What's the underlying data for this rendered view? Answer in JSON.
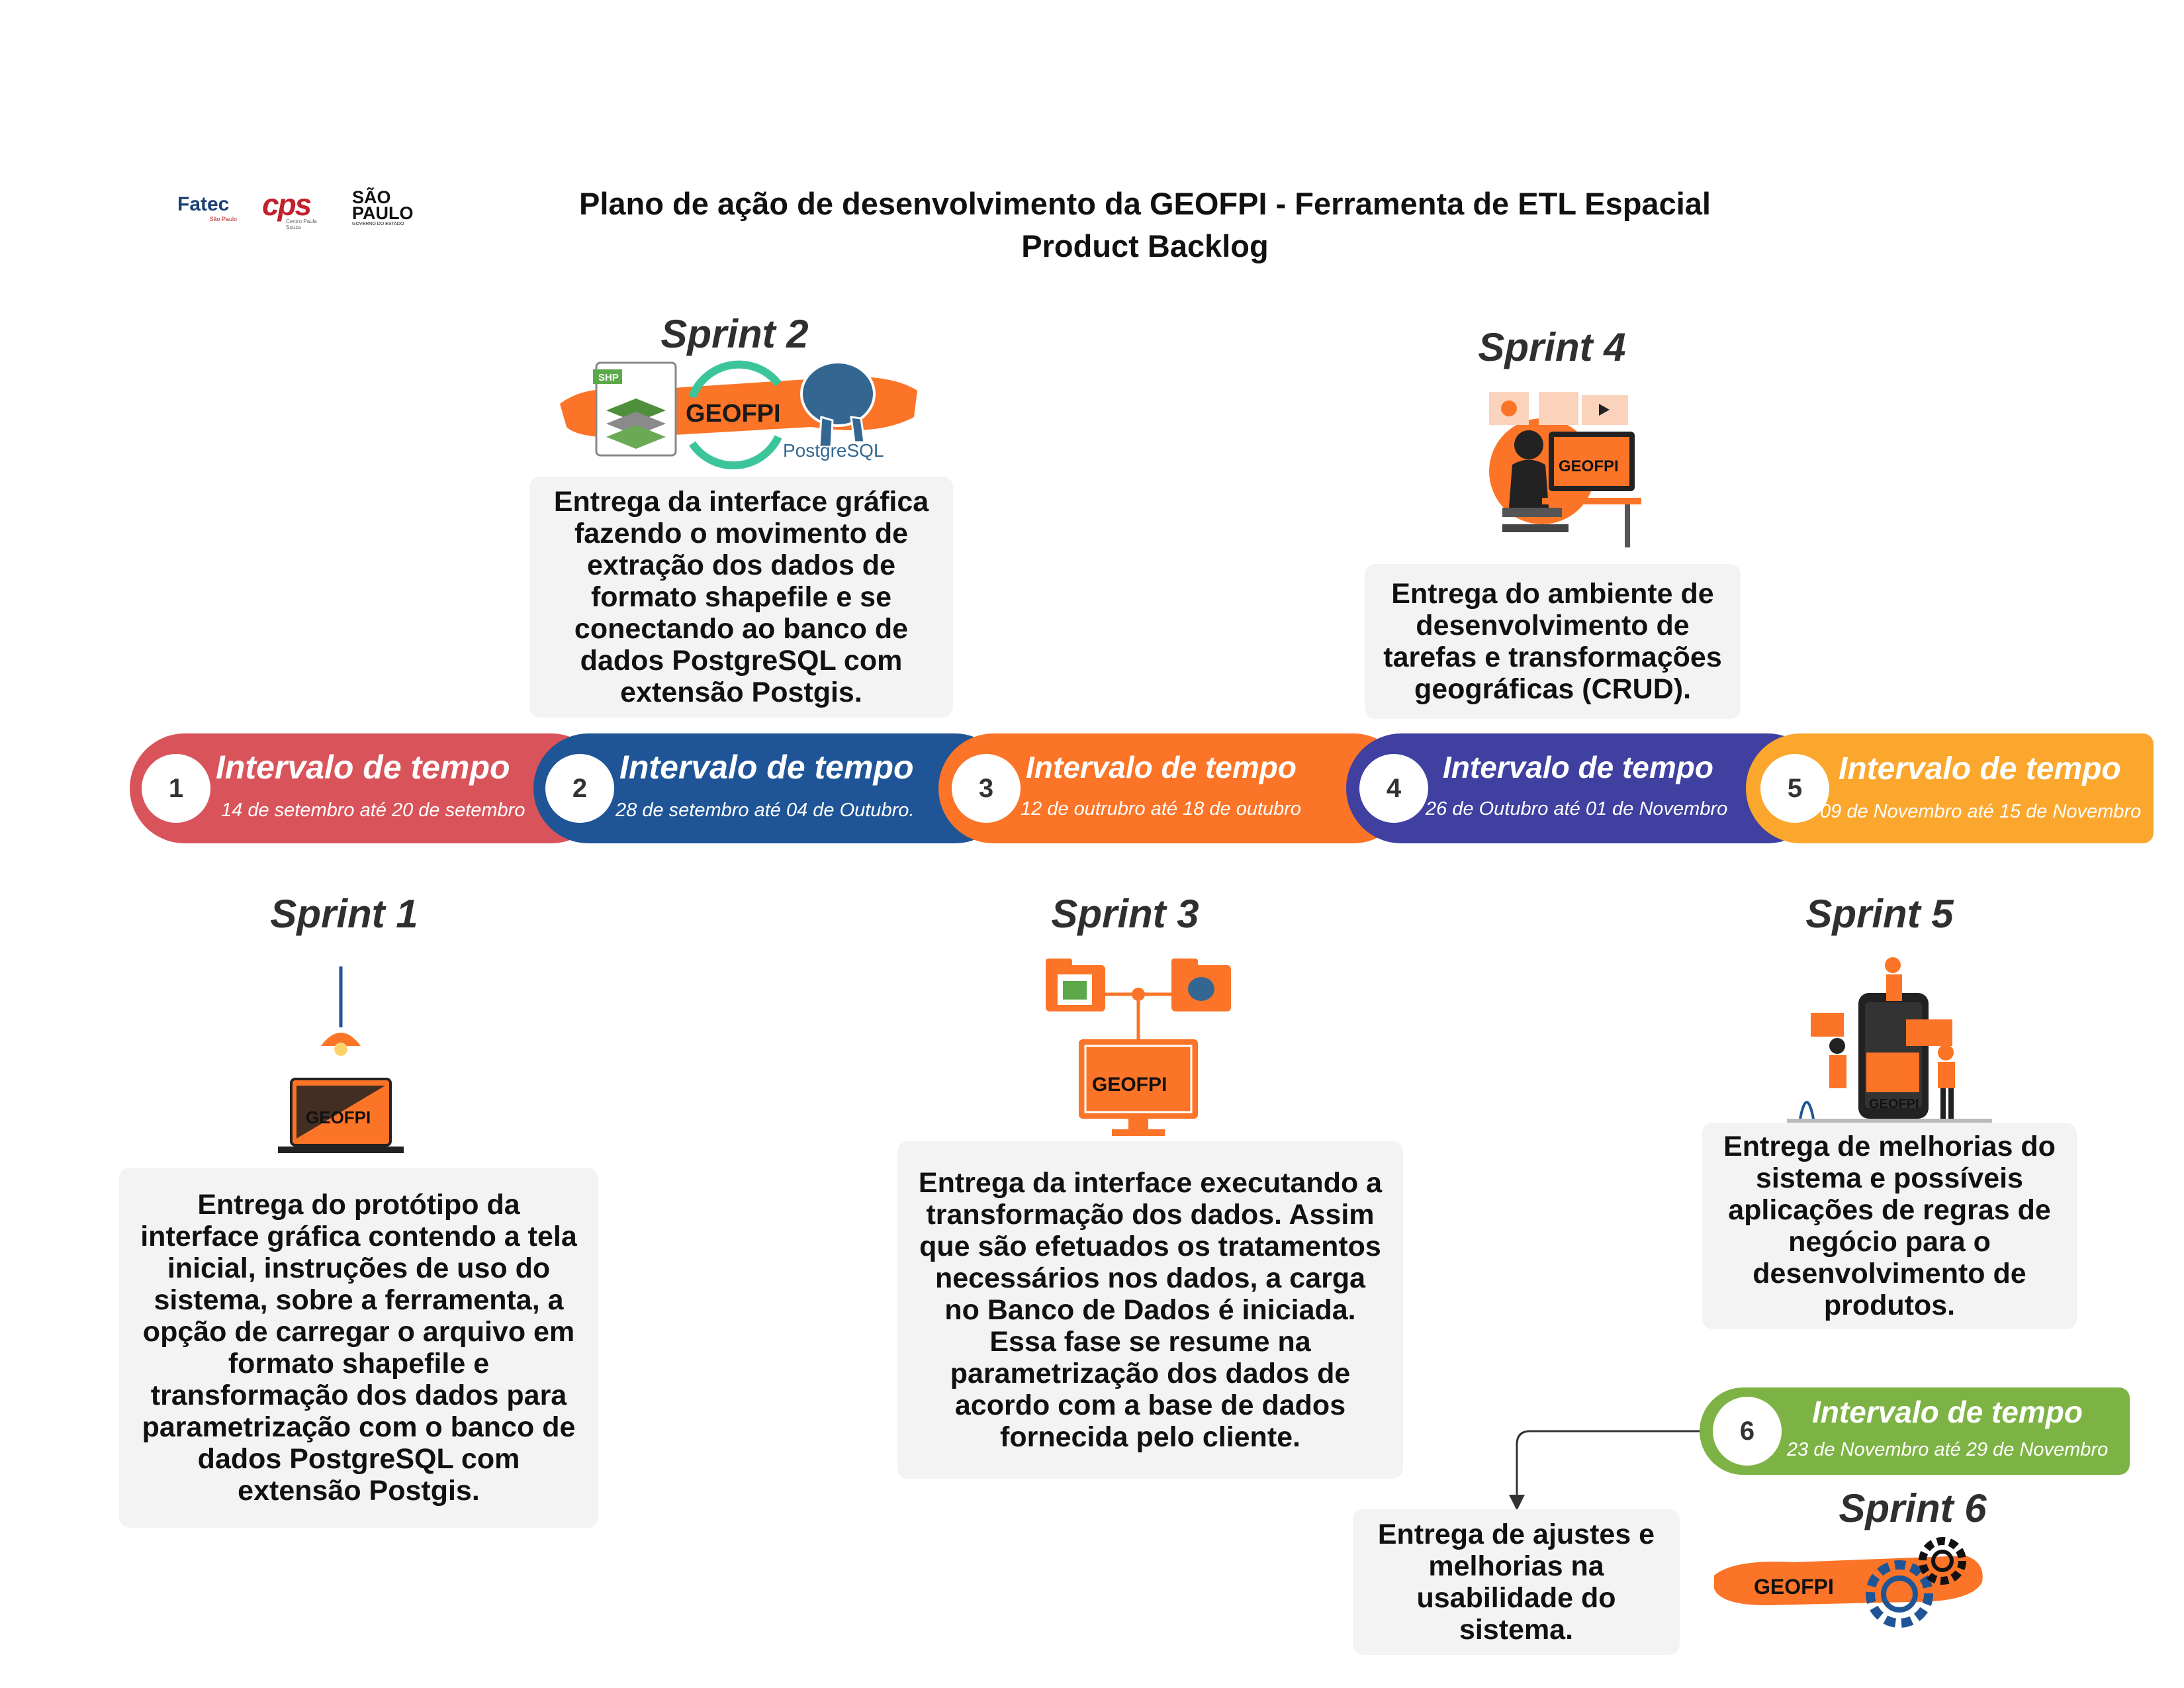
{
  "header": {
    "title_line1": "Plano de ação de desenvolvimento da GEOFPI - Ferramenta de ETL Espacial",
    "title_line2": "Product Backlog"
  },
  "logos": {
    "fatec": "Fatec",
    "fatec_sub": "São Paulo",
    "cps": "cps",
    "cps_sub": "Centro Paula Souza",
    "sp_line1": "SÃO",
    "sp_line2": "PAULO",
    "sp_sub": "GOVERNO DO ESTADO"
  },
  "brand": {
    "geofpi": "GEOFPI",
    "postgres": "PostgreSQL",
    "shp": "SHP"
  },
  "timeline": [
    {
      "num": "1",
      "title": "Intervalo de tempo",
      "dates": "14 de setembro até 20 de setembro",
      "color": "#d9545a"
    },
    {
      "num": "2",
      "title": "Intervalo de tempo",
      "dates": "28 de setembro até 04 de Outubro.",
      "color": "#1f5596"
    },
    {
      "num": "3",
      "title": "Intervalo de tempo",
      "dates": "12 de outrubro até 18 de outubro",
      "color": "#fb7427"
    },
    {
      "num": "4",
      "title": "Intervalo de tempo",
      "dates": "26 de Outubro até 01 de Novembro",
      "color": "#3f40a0"
    },
    {
      "num": "5",
      "title": "Intervalo de tempo",
      "dates": "09 de Novembro até 15 de Novembro",
      "color": "#fba72d"
    },
    {
      "num": "6",
      "title": "Intervalo de tempo",
      "dates": "23 de Novembro até 29 de Novembro",
      "color": "#7db345"
    }
  ],
  "sprints": {
    "s1": {
      "label": "Sprint 1",
      "lines": [
        "Entrega do protótipo da",
        "interface gráfica contendo a tela",
        "inicial, instruções de uso do",
        "sistema, sobre a ferramenta, a",
        "opção de carregar o arquivo em",
        "formato shapefile e",
        "transformação dos dados para",
        "parametrização com o banco de",
        "dados PostgreSQL com",
        "extensão Postgis."
      ]
    },
    "s2": {
      "label": "Sprint 2",
      "lines": [
        "Entrega da interface gráfica",
        "fazendo o movimento de",
        "extração dos dados de",
        "formato shapefile e se",
        "conectando ao banco de",
        "dados PostgreSQL com",
        "extensão Postgis."
      ]
    },
    "s3": {
      "label": "Sprint 3",
      "lines": [
        "Entrega da interface executando a",
        "transformação dos dados. Assim",
        "que são efetuados os tratamentos",
        "necessários nos dados, a carga",
        "no Banco de Dados é iniciada.",
        "Essa fase se resume na",
        "parametrização dos dados de",
        "acordo com a base de dados",
        "fornecida pelo cliente."
      ]
    },
    "s4": {
      "label": "Sprint 4",
      "lines": [
        "Entrega do ambiente de",
        "desenvolvimento de",
        "tarefas e transformações",
        "geográficas (CRUD)."
      ]
    },
    "s5": {
      "label": "Sprint 5",
      "lines": [
        "Entrega de melhorias do",
        "sistema e possíveis",
        "aplicações de regras de",
        "negócio para o",
        "desenvolvimento de",
        "produtos."
      ]
    },
    "s6": {
      "label": "Sprint 6",
      "lines": [
        "Entrega de ajustes e",
        "melhorias na",
        "usabilidade do",
        "sistema."
      ]
    }
  }
}
